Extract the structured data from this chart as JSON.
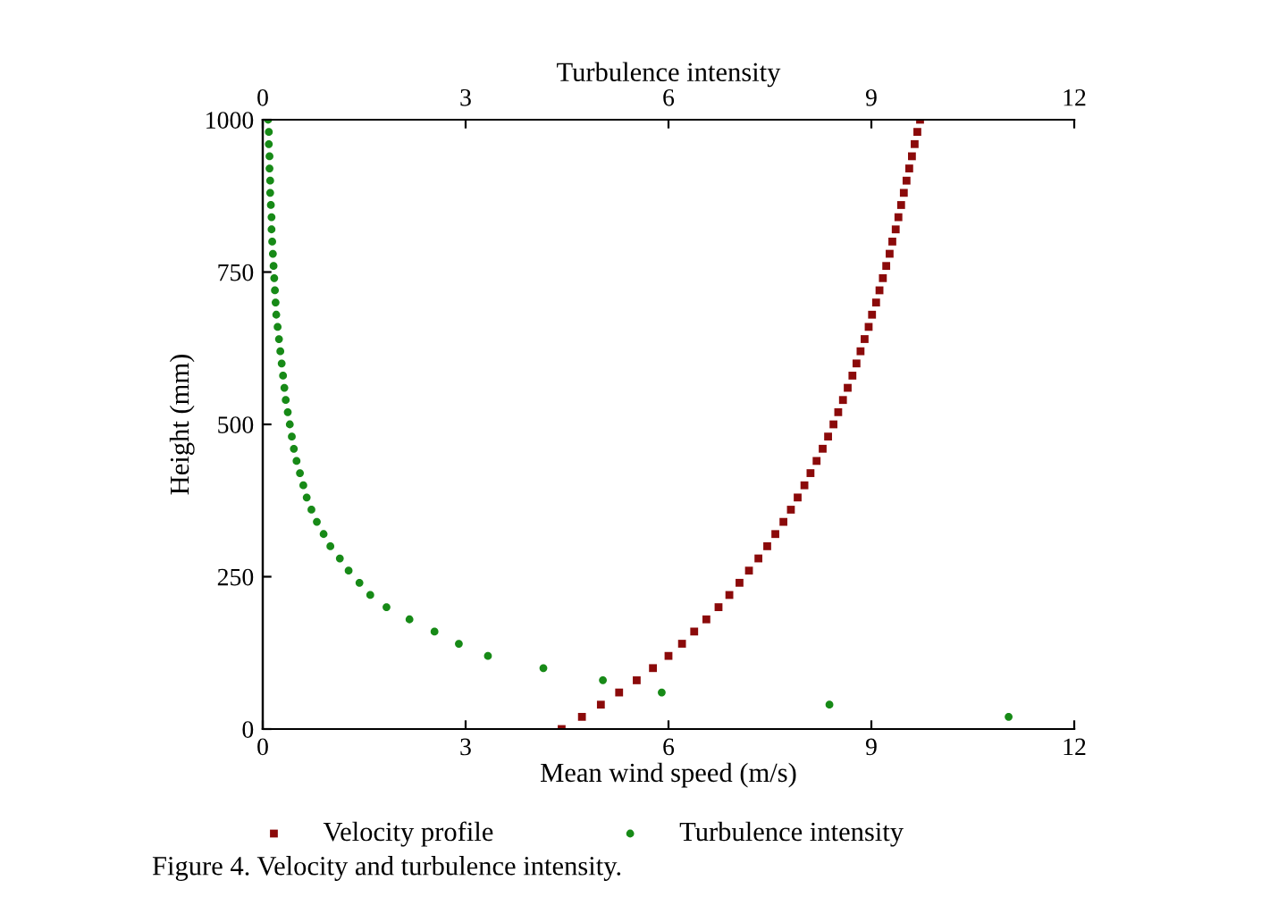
{
  "chart_data": {
    "type": "scatter",
    "xlabel": "Mean wind speed (m/s)",
    "x2label": "Turbulence intensity",
    "ylabel": "Height (mm)",
    "xlim": [
      0,
      12
    ],
    "xticks": [
      0,
      3,
      6,
      9,
      12
    ],
    "x2lim": [
      0,
      12
    ],
    "x2ticks": [
      0,
      3,
      6,
      9,
      12
    ],
    "ylim": [
      0,
      1000
    ],
    "yticks": [
      0,
      250,
      500,
      750,
      1000
    ],
    "grid": false,
    "legend": "bottom",
    "annotations": [
      "Figure 4. Velocity and turbulence intensity."
    ],
    "series": [
      {
        "name": "Velocity profile",
        "color": "#8b0a0a",
        "marker": "square",
        "x": [
          4.42,
          4.72,
          5.0,
          5.27,
          5.53,
          5.77,
          6.0,
          6.2,
          6.38,
          6.56,
          6.74,
          6.9,
          7.05,
          7.19,
          7.33,
          7.46,
          7.58,
          7.7,
          7.81,
          7.91,
          8.01,
          8.1,
          8.19,
          8.28,
          8.36,
          8.44,
          8.51,
          8.58,
          8.65,
          8.72,
          8.78,
          8.84,
          8.9,
          8.96,
          9.01,
          9.07,
          9.12,
          9.17,
          9.22,
          9.27,
          9.31,
          9.36,
          9.4,
          9.44,
          9.48,
          9.52,
          9.56,
          9.6,
          9.64,
          9.68,
          9.72
        ],
        "values": [
          0,
          20,
          40,
          60,
          80,
          100,
          120,
          140,
          160,
          180,
          200,
          220,
          240,
          260,
          280,
          300,
          320,
          340,
          360,
          380,
          400,
          420,
          440,
          460,
          480,
          500,
          520,
          540,
          560,
          580,
          600,
          620,
          640,
          660,
          680,
          700,
          720,
          740,
          760,
          780,
          800,
          820,
          840,
          860,
          880,
          900,
          920,
          940,
          960,
          980,
          1000
        ]
      },
      {
        "name": "Turbulence intensity",
        "color": "#178a17",
        "marker": "circle",
        "axis": "x2",
        "x": [
          11.03,
          8.38,
          5.9,
          5.03,
          4.15,
          3.33,
          2.9,
          2.54,
          2.17,
          1.83,
          1.59,
          1.43,
          1.27,
          1.14,
          1.0,
          0.9,
          0.8,
          0.72,
          0.65,
          0.6,
          0.55,
          0.5,
          0.46,
          0.43,
          0.4,
          0.37,
          0.34,
          0.32,
          0.3,
          0.28,
          0.26,
          0.24,
          0.22,
          0.2,
          0.19,
          0.18,
          0.17,
          0.16,
          0.15,
          0.14,
          0.13,
          0.13,
          0.12,
          0.11,
          0.11,
          0.1,
          0.1,
          0.09,
          0.09,
          0.08
        ],
        "values": [
          20,
          40,
          60,
          80,
          100,
          120,
          140,
          160,
          180,
          200,
          220,
          240,
          260,
          280,
          300,
          320,
          340,
          360,
          380,
          400,
          420,
          440,
          460,
          480,
          500,
          520,
          540,
          560,
          580,
          600,
          620,
          640,
          660,
          680,
          700,
          720,
          740,
          760,
          780,
          800,
          820,
          840,
          860,
          880,
          900,
          920,
          940,
          960,
          980,
          1000
        ]
      }
    ]
  }
}
